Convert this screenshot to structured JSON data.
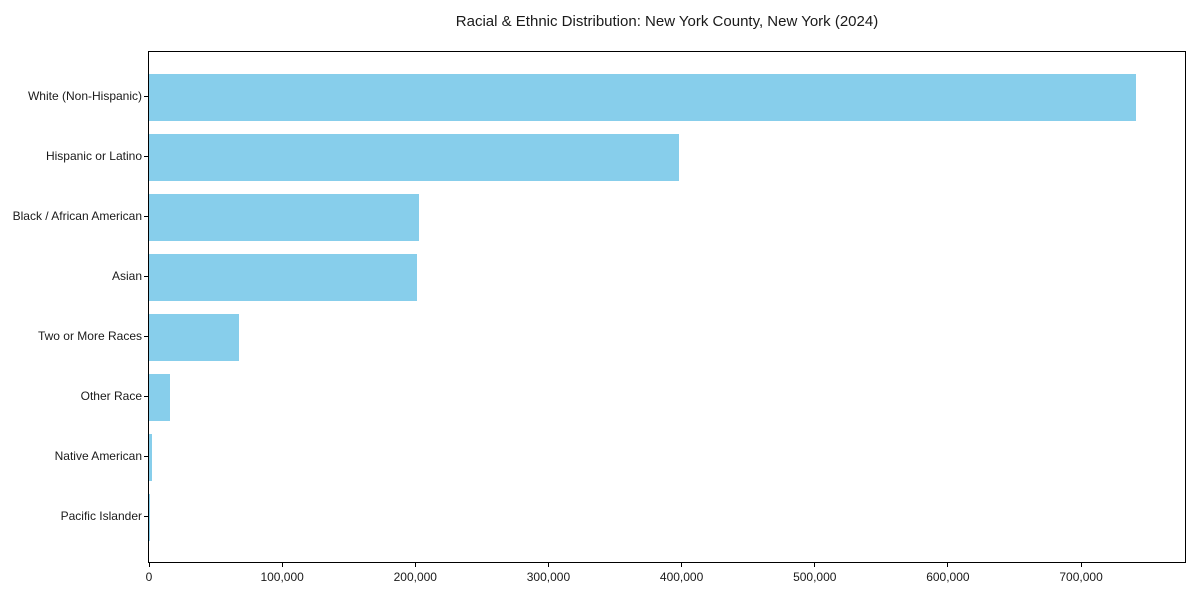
{
  "chart_data": {
    "type": "bar",
    "orientation": "horizontal",
    "title": "Racial & Ethnic Distribution: New York County, New York (2024)",
    "categories": [
      "White (Non-Hispanic)",
      "Hispanic or Latino",
      "Black / African American",
      "Asian",
      "Two or More Races",
      "Other Race",
      "Native American",
      "Pacific Islander"
    ],
    "values": [
      741000,
      398000,
      203000,
      201500,
      67500,
      16000,
      2000,
      500
    ],
    "xlabel": "",
    "ylabel": "",
    "xlim": [
      0,
      778050
    ],
    "x_ticks": [
      0,
      100000,
      200000,
      300000,
      400000,
      500000,
      600000,
      700000
    ],
    "x_tick_labels": [
      "0",
      "100,000",
      "200,000",
      "300,000",
      "400,000",
      "500,000",
      "600,000",
      "700,000"
    ],
    "bar_color": "#87CEEB",
    "grid": false,
    "legend": null,
    "background_color": "#ffffff",
    "spine_color": "#000000"
  }
}
